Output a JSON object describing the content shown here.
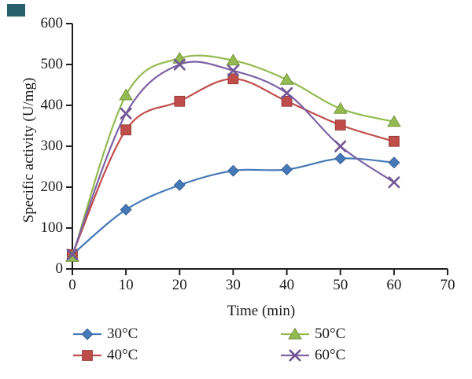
{
  "figure": {
    "background": "#ffffff",
    "text_color": "#1c1c1c",
    "axis_color": "#1f1f1f",
    "corner_artifact_color": "#27606a"
  },
  "chart_data": {
    "type": "line",
    "title": "",
    "xlabel": "Time (min)",
    "ylabel": "Specific activity (U/mg)",
    "x": [
      0,
      10,
      20,
      30,
      40,
      50,
      60
    ],
    "xlim": [
      0,
      70
    ],
    "ylim": [
      0,
      600
    ],
    "x_ticks": [
      0,
      10,
      20,
      30,
      40,
      50,
      60,
      70
    ],
    "y_ticks": [
      0,
      100,
      200,
      300,
      400,
      500,
      600
    ],
    "grid": false,
    "smooth_lines": true,
    "legend_position": "bottom",
    "series": [
      {
        "name": "30°C",
        "marker": "diamond",
        "color": "#4579b8",
        "values": [
          35,
          145,
          205,
          240,
          243,
          270,
          260
        ]
      },
      {
        "name": "40°C",
        "marker": "square",
        "color": "#bf4e4b",
        "values": [
          35,
          340,
          410,
          465,
          410,
          352,
          312
        ]
      },
      {
        "name": "50°C",
        "marker": "triangle",
        "color": "#94ba51",
        "values": [
          30,
          425,
          515,
          510,
          463,
          392,
          360
        ]
      },
      {
        "name": "60°C",
        "marker": "x",
        "color": "#7d62a4",
        "values": [
          35,
          380,
          500,
          485,
          430,
          300,
          212
        ]
      }
    ]
  }
}
